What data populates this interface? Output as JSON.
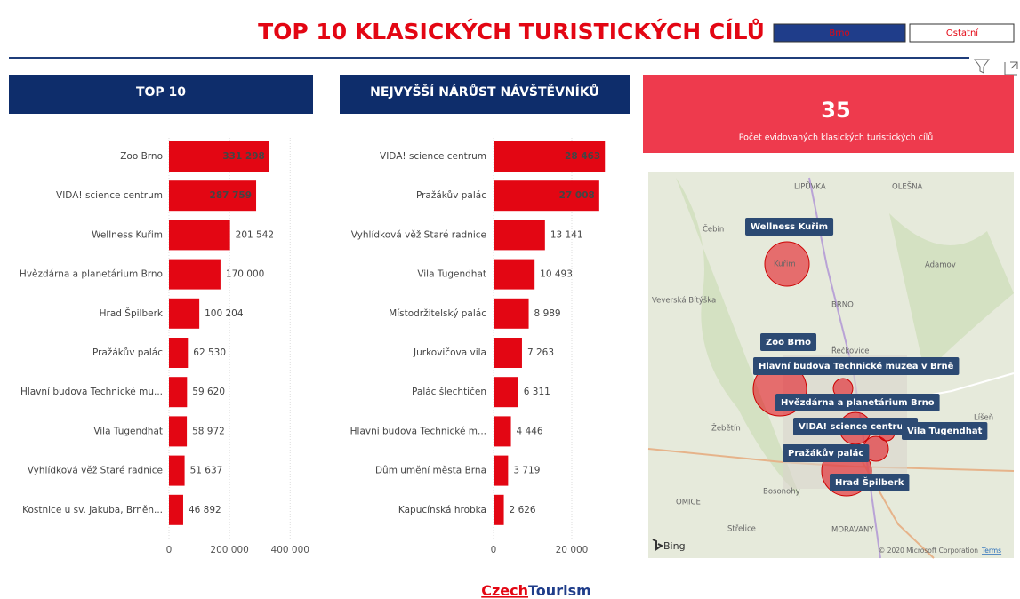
{
  "header": {
    "title": "TOP 10 KLASICKÝCH TURISTICKÝCH CÍLŮ",
    "buttons": [
      "Brno",
      "Ostatní"
    ]
  },
  "chart_data": [
    {
      "type": "bar",
      "title": "TOP 10",
      "color": "#e30613",
      "grid": true,
      "categories": [
        "Zoo Brno",
        "VIDA! science centrum",
        "Wellness Kuřim",
        "Hvězdárna a planetárium Brno",
        "Hrad Špilberk",
        "Pražákův palác",
        "Hlavní budova Technické mu...",
        "Vila Tugendhat",
        "Vyhlídková věž Staré radnice",
        "Kostnice u sv. Jakuba, Brněn..."
      ],
      "values": [
        331298,
        287759,
        201542,
        170000,
        100204,
        62530,
        59620,
        58972,
        51637,
        46892
      ],
      "value_labels": [
        "331 298",
        "287 759",
        "201 542",
        "170 000",
        "100 204",
        "62 530",
        "59 620",
        "58 972",
        "51 637",
        "46 892"
      ],
      "xlim": [
        0,
        455000
      ],
      "xticks": [
        0,
        {
          "value": 200000,
          "label": "200 000"
        },
        {
          "value": 400000,
          "label": "400 000"
        }
      ]
    },
    {
      "type": "bar",
      "title": "NEJVYŠŠÍ NÁRŮST NÁVŠTĚVNÍKŮ",
      "color": "#e30613",
      "grid": true,
      "categories": [
        "VIDA! science centrum",
        "Pražákův palác",
        "Vyhlídková věž Staré radnice",
        "Vila Tugendhat",
        "Místodržitelský palác",
        "Jurkovičova vila",
        "Palác šlechtičen",
        "Hlavní budova Technické m...",
        "Dům umění města Brna",
        "Kapucínská hrobka"
      ],
      "values": [
        28463,
        27008,
        13141,
        10493,
        8989,
        7263,
        6311,
        4446,
        3719,
        2626
      ],
      "value_labels": [
        "28 463",
        "27 008",
        "13 141",
        "10 493",
        "8 989",
        "7 263",
        "6 311",
        "4 446",
        "3 719",
        "2 626"
      ],
      "xlim": [
        0,
        30000
      ],
      "xticks": [
        0,
        {
          "value": 20000,
          "label": "20 000"
        }
      ]
    }
  ],
  "kpi": {
    "value": "35",
    "label": "Počet evidovaných klasických turistických cílů"
  },
  "map": {
    "labels": [
      "Wellness Kuřim",
      "Zoo Brno",
      "Hlavní budova Technické muzea v Brně",
      "Hvězdárna a planetárium Brno",
      "VIDA! science centrum",
      "Vila Tugendhat",
      "Pražákův palác",
      "Hrad Špilberk"
    ],
    "places": [
      "LIPŮVKA",
      "OLEŠNÁ",
      "Čebín",
      "Kuřim",
      "Adamov",
      "Veverská Bítýška",
      "BRNO",
      "Řečkovice",
      "Žebětín",
      "Bosonohy",
      "OMICE",
      "Střelice",
      "MORAVANY",
      "Líšeň"
    ],
    "attribution": "© 2020 Microsoft Corporation",
    "terms": "Terms",
    "provider": "Bing"
  },
  "footer": {
    "brand": [
      "Czech",
      "Tourism"
    ]
  }
}
